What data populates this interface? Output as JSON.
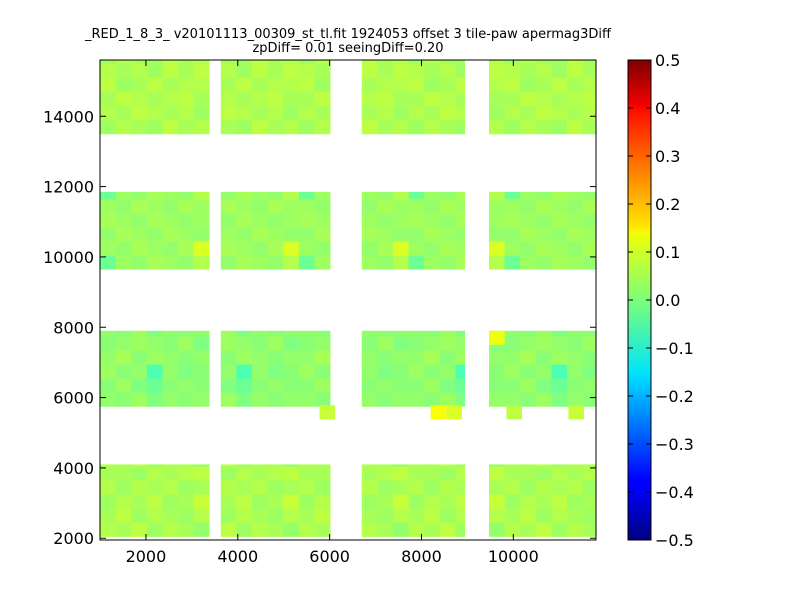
{
  "chart_data": {
    "type": "heatmap",
    "title_line1": "_RED_1_8_3_ v20101113_00309_st_tl.fit 1924053 offset 3 tile-paw apermag3Diff",
    "title_line2": "zpDiff= 0.01 seeingDiff=0.20",
    "xlabel": "",
    "ylabel": "",
    "xlim": [
      1000,
      11800
    ],
    "ylim": [
      1950,
      15600
    ],
    "xticks": [
      "2000",
      "4000",
      "6000",
      "8000",
      "10000"
    ],
    "xtick_values": [
      2000,
      4000,
      6000,
      8000,
      10000
    ],
    "yticks": [
      "2000",
      "4000",
      "6000",
      "8000",
      "10000",
      "12000",
      "14000"
    ],
    "ytick_values": [
      2000,
      4000,
      6000,
      8000,
      10000,
      12000,
      14000
    ],
    "colormap": "jet",
    "colorbar": {
      "range": [
        -0.5,
        0.5
      ],
      "ticks": [
        "0.5",
        "0.4",
        "0.3",
        "0.2",
        "0.1",
        "0.0",
        "−0.1",
        "−0.2",
        "−0.3",
        "−0.4",
        "−0.5"
      ],
      "tick_values": [
        0.5,
        0.4,
        0.3,
        0.2,
        0.1,
        0.0,
        -0.1,
        -0.2,
        -0.3,
        -0.4,
        -0.5
      ]
    },
    "cell_size": [
      340,
      400
    ],
    "chip_columns_x": [
      [
        1000,
        3375
      ],
      [
        3630,
        6010
      ],
      [
        6700,
        8940
      ],
      [
        9470,
        11800
      ]
    ],
    "chip_rows_y": [
      [
        2050,
        4100
      ],
      [
        5750,
        7900
      ],
      [
        9650,
        11850
      ],
      [
        13500,
        15600
      ]
    ],
    "value_grid_note_free": true,
    "values_by_block": [
      [
        [
          0.05,
          0.04,
          0.06,
          0.03,
          0.05,
          0.04,
          0.02
        ],
        [
          0.04,
          0.06,
          0.03,
          0.05,
          0.04,
          0.03,
          0.05
        ],
        [
          0.03,
          0.05,
          0.04,
          0.06,
          0.03,
          0.04,
          0.07
        ],
        [
          0.05,
          0.03,
          0.05,
          0.04,
          0.05,
          0.03,
          0.04
        ],
        [
          0.04,
          0.04,
          0.03,
          0.05,
          0.04,
          0.05,
          0.06
        ]
      ],
      [
        [
          0.02,
          0.01,
          0.03,
          0.0,
          0.02,
          0.01,
          0.02
        ],
        [
          0.01,
          0.03,
          0.0,
          -0.02,
          0.01,
          0.02,
          0.01
        ],
        [
          0.03,
          0.01,
          0.02,
          -0.05,
          0.02,
          0.0,
          0.01
        ],
        [
          0.02,
          0.04,
          0.01,
          0.03,
          0.02,
          0.01,
          0.02
        ],
        [
          0.01,
          0.02,
          0.03,
          0.02,
          0.01,
          0.03,
          0.0
        ]
      ],
      [
        [
          -0.02,
          0.03,
          0.02,
          0.04,
          0.03,
          0.02,
          0.05
        ],
        [
          0.03,
          0.02,
          0.04,
          0.03,
          0.02,
          0.04,
          0.09
        ],
        [
          0.02,
          0.04,
          0.03,
          0.02,
          0.04,
          0.03,
          0.02
        ],
        [
          0.04,
          0.03,
          0.02,
          0.04,
          0.03,
          0.02,
          0.03
        ],
        [
          0.03,
          0.02,
          0.04,
          0.03,
          0.02,
          0.04,
          0.03
        ]
      ],
      [
        [
          0.03,
          0.05,
          0.04,
          0.03,
          0.06,
          0.04,
          0.05
        ],
        [
          0.05,
          0.04,
          0.06,
          0.05,
          0.04,
          0.05,
          0.03
        ],
        [
          0.04,
          0.06,
          0.05,
          0.04,
          0.05,
          0.06,
          0.04
        ],
        [
          0.06,
          0.03,
          0.04,
          0.06,
          0.04,
          0.05,
          0.05
        ],
        [
          0.05,
          0.04,
          0.05,
          0.03,
          0.06,
          0.04,
          0.06
        ]
      ]
    ],
    "extra_cells": [
      {
        "x": 5780,
        "y": 5380,
        "v": 0.07
      },
      {
        "x": 8200,
        "y": 5380,
        "v": 0.12
      },
      {
        "x": 8540,
        "y": 5380,
        "v": 0.09
      },
      {
        "x": 9850,
        "y": 5380,
        "v": 0.06
      },
      {
        "x": 11200,
        "y": 5380,
        "v": 0.07
      },
      {
        "x": 9470,
        "y": 7500,
        "v": 0.11
      }
    ],
    "grid": false,
    "legend": "none"
  }
}
